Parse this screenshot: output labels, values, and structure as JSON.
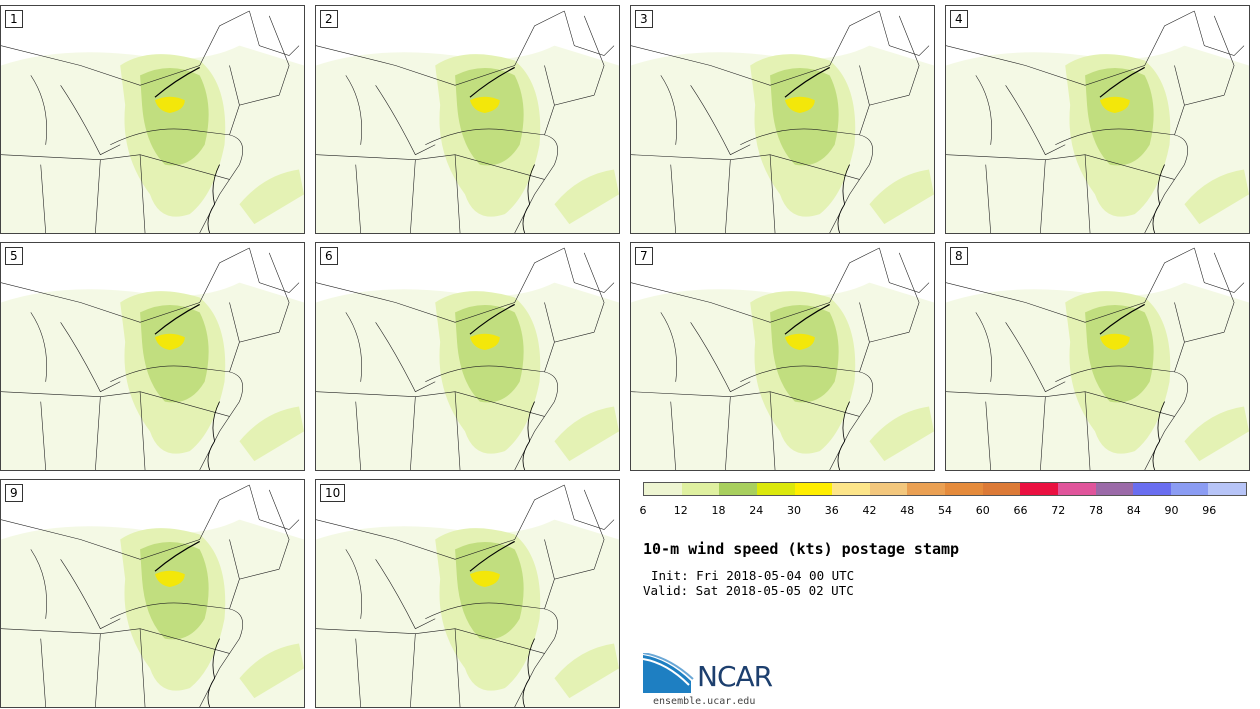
{
  "panels": [
    {
      "label": "1"
    },
    {
      "label": "2"
    },
    {
      "label": "3"
    },
    {
      "label": "4"
    },
    {
      "label": "5"
    },
    {
      "label": "6"
    },
    {
      "label": "7"
    },
    {
      "label": "8"
    },
    {
      "label": "9"
    },
    {
      "label": "10"
    }
  ],
  "colorbar": {
    "colors": [
      "#eef5d2",
      "#dff0a0",
      "#a8cf5e",
      "#dbe80c",
      "#ffee00",
      "#fde58a",
      "#f3c77d",
      "#eaa053",
      "#e58b3c",
      "#dc7a37",
      "#ea1040",
      "#e0559b",
      "#9b6aa8",
      "#6a6ef0",
      "#8b9cf3",
      "#b7c4f7"
    ],
    "ticks": [
      "6",
      "12",
      "18",
      "24",
      "30",
      "36",
      "42",
      "48",
      "54",
      "60",
      "66",
      "72",
      "78",
      "84",
      "90",
      "96"
    ]
  },
  "title": "10-m wind speed (kts) postage stamp",
  "init": "Init: Fri 2018-05-04 00 UTC",
  "valid": "Valid: Sat 2018-05-05 02 UTC",
  "logo": {
    "text": "NCAR",
    "url": "ensemble.ucar.edu",
    "icon": "ncar-logo-icon"
  }
}
